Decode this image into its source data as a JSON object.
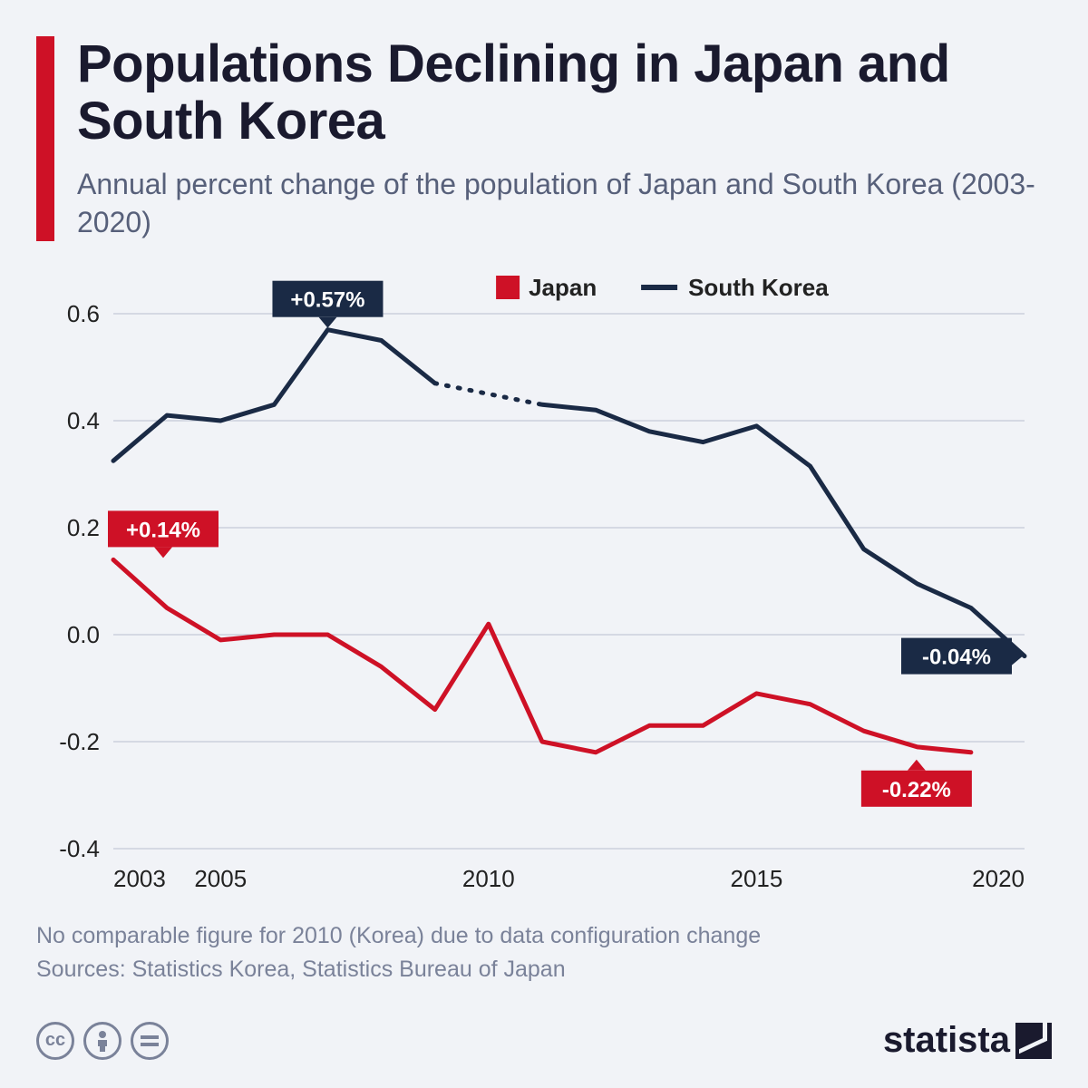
{
  "header": {
    "title": "Populations Declining in Japan and South Korea",
    "subtitle": "Annual percent change of the population of Japan and South Korea (2003-2020)",
    "accent_color": "#ce1126"
  },
  "chart": {
    "type": "line",
    "background_color": "#f1f3f7",
    "grid_color": "#b9bfcf",
    "axis_color": "#222",
    "ylim": [
      -0.4,
      0.6
    ],
    "xlim": [
      2003,
      2020
    ],
    "yticks": [
      -0.4,
      -0.2,
      0.0,
      0.2,
      0.4,
      0.6
    ],
    "ytick_labels": [
      "-0.4",
      "-0.2",
      "0.0",
      "0.2",
      "0.4",
      "0.6"
    ],
    "xticks": [
      2003,
      2005,
      2010,
      2015,
      2020
    ],
    "xtick_labels": [
      "2003",
      "2005",
      "2010",
      "2015",
      "2020"
    ],
    "axis_fontsize": 26,
    "line_width": 5,
    "legend": {
      "items": [
        {
          "label": "Japan",
          "color": "#ce1126",
          "marker": "square"
        },
        {
          "label": "South Korea",
          "color": "#1a2a45",
          "marker": "line"
        }
      ],
      "fontsize": 26,
      "position": "top-center"
    },
    "series": [
      {
        "name": "Japan",
        "color": "#ce1126",
        "years": [
          2003,
          2004,
          2005,
          2006,
          2007,
          2008,
          2009,
          2010,
          2011,
          2012,
          2013,
          2014,
          2015,
          2016,
          2017,
          2018,
          2019
        ],
        "values": [
          0.14,
          0.05,
          -0.01,
          0.0,
          0.0,
          -0.06,
          -0.14,
          0.02,
          -0.2,
          -0.22,
          -0.17,
          -0.17,
          -0.11,
          -0.13,
          -0.18,
          -0.21,
          -0.22
        ],
        "start_callout": {
          "text": "+0.14%",
          "year": 2003,
          "value": 0.14,
          "box_color": "#ce1126",
          "text_color": "#ffffff"
        },
        "end_callout": {
          "text": "-0.22%",
          "year": 2019,
          "value": -0.22,
          "box_color": "#ce1126",
          "text_color": "#ffffff",
          "position": "below"
        }
      },
      {
        "name": "South Korea",
        "color": "#1a2a45",
        "years": [
          2003,
          2004,
          2005,
          2006,
          2007,
          2008,
          2009,
          2011,
          2012,
          2013,
          2014,
          2015,
          2016,
          2017,
          2018,
          2019,
          2020
        ],
        "values": [
          0.325,
          0.41,
          0.4,
          0.43,
          0.57,
          0.55,
          0.47,
          0.43,
          0.42,
          0.38,
          0.36,
          0.39,
          0.315,
          0.16,
          0.095,
          0.05,
          -0.04
        ],
        "dotted_gap": {
          "from_year": 2009,
          "to_year": 2011,
          "from_value": 0.47,
          "to_value": 0.43
        },
        "peak_callout": {
          "text": "+0.57%",
          "year": 2007,
          "value": 0.57,
          "box_color": "#1a2a45",
          "text_color": "#ffffff",
          "position": "above"
        },
        "end_callout": {
          "text": "-0.04%",
          "year": 2020,
          "value": -0.04,
          "box_color": "#1a2a45",
          "text_color": "#ffffff",
          "position": "left"
        }
      }
    ]
  },
  "footnote": {
    "line1": "No comparable figure for 2010 (Korea) due to data configuration change",
    "line2": "Sources: Statistics Korea, Statistics Bureau of Japan"
  },
  "footer": {
    "brand": "statista",
    "cc_icons": [
      "cc",
      "by",
      "nd"
    ]
  }
}
